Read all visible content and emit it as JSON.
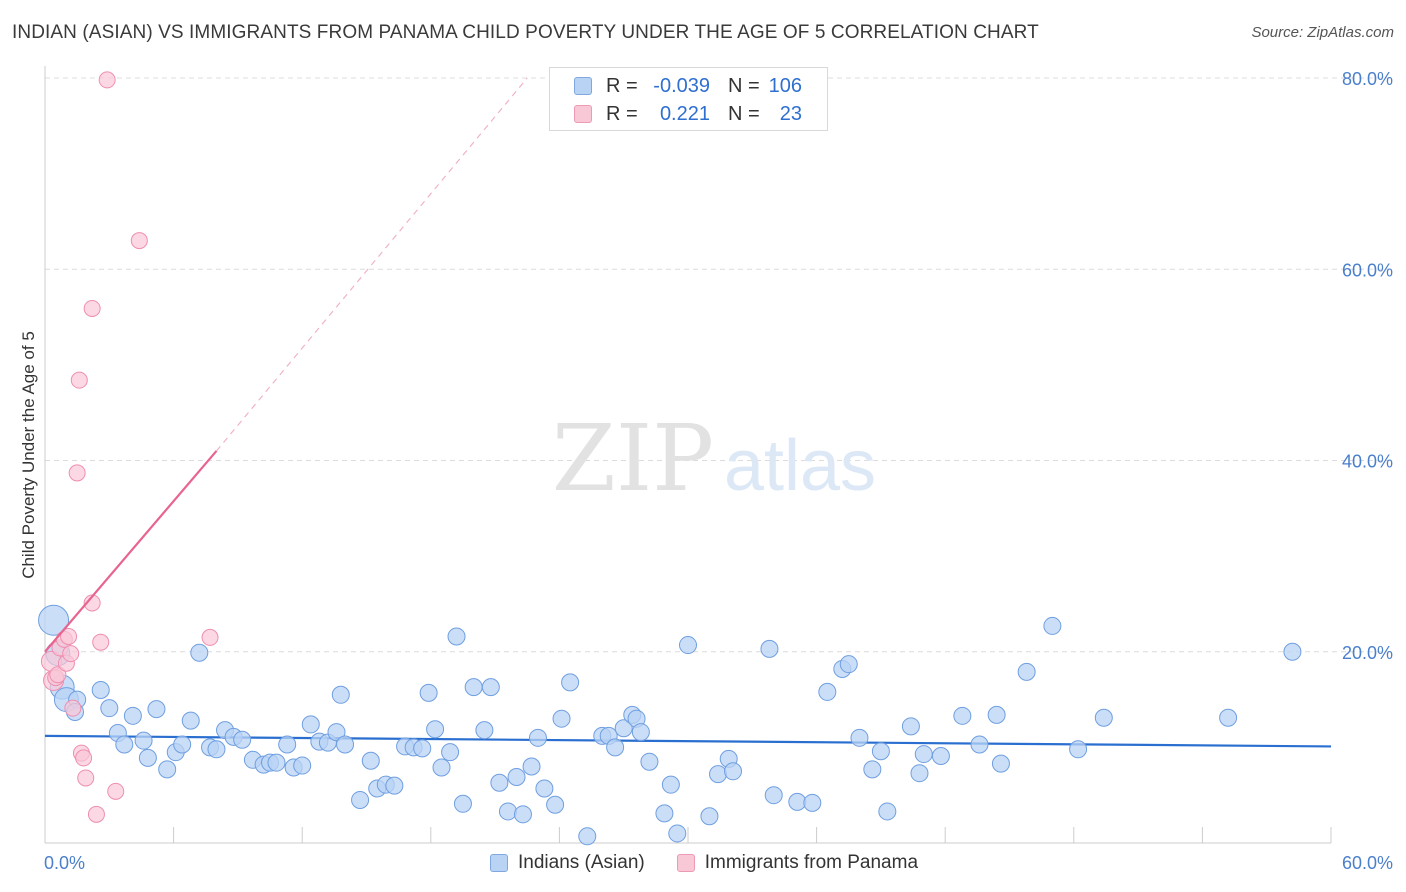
{
  "title": "INDIAN (ASIAN) VS IMMIGRANTS FROM PANAMA CHILD POVERTY UNDER THE AGE OF 5 CORRELATION CHART",
  "source": "Source: ZipAtlas.com",
  "watermark": {
    "zip": "ZIP",
    "atlas": "atlas"
  },
  "legend": {
    "rows": [
      {
        "r_label": "R =",
        "r_value": "-0.039",
        "n_label": "N =",
        "n_value": "106"
      },
      {
        "r_label": "R =",
        "r_value": "0.221",
        "n_label": "N =",
        "n_value": "23"
      }
    ]
  },
  "colors": {
    "blue_fill": "#b9d3f5",
    "blue_stroke": "#6f9fe0",
    "blue_line": "#2a6fd0",
    "pink_fill": "#f9c8d7",
    "pink_stroke": "#ee8fb0",
    "pink_line": "#e8648f",
    "grid": "#dcdcdc",
    "axis": "#cccccc"
  },
  "chart_data": {
    "type": "scatter",
    "title": "INDIAN (ASIAN) VS IMMIGRANTS FROM PANAMA CHILD POVERTY UNDER THE AGE OF 5 CORRELATION CHART",
    "xlabel": "",
    "ylabel": "Child Poverty Under the Age of 5",
    "xlim": [
      0,
      60
    ],
    "ylim": [
      0,
      80
    ],
    "x_tick_labels": [
      "0.0%",
      "60.0%"
    ],
    "y_ticks": [
      20,
      40,
      60,
      80
    ],
    "y_tick_labels": [
      "20.0%",
      "40.0%",
      "60.0%",
      "80.0%"
    ],
    "grid": true,
    "series": [
      {
        "name": "Indians (Asian)",
        "trend": {
          "x0": 0,
          "y0": 11.2,
          "x1": 60,
          "y1": 10.1
        },
        "points": [
          [
            0.4,
            23.3
          ],
          [
            0.6,
            19.8
          ],
          [
            0.8,
            16.3
          ],
          [
            1.0,
            15.0
          ],
          [
            1.5,
            15.0
          ],
          [
            1.4,
            13.7
          ],
          [
            2.6,
            16.0
          ],
          [
            3.0,
            14.1
          ],
          [
            3.4,
            11.5
          ],
          [
            3.7,
            10.3
          ],
          [
            4.1,
            13.3
          ],
          [
            4.6,
            10.7
          ],
          [
            4.8,
            8.9
          ],
          [
            5.2,
            14.0
          ],
          [
            5.7,
            7.7
          ],
          [
            6.1,
            9.5
          ],
          [
            6.4,
            10.3
          ],
          [
            6.8,
            12.8
          ],
          [
            7.2,
            19.9
          ],
          [
            7.7,
            10.0
          ],
          [
            8.0,
            9.8
          ],
          [
            8.4,
            11.8
          ],
          [
            8.8,
            11.1
          ],
          [
            9.2,
            10.8
          ],
          [
            9.7,
            8.7
          ],
          [
            10.2,
            8.2
          ],
          [
            10.5,
            8.4
          ],
          [
            10.8,
            8.4
          ],
          [
            11.3,
            10.3
          ],
          [
            11.6,
            7.9
          ],
          [
            12.0,
            8.1
          ],
          [
            12.4,
            12.4
          ],
          [
            12.8,
            10.6
          ],
          [
            13.2,
            10.5
          ],
          [
            13.6,
            11.6
          ],
          [
            14.0,
            10.3
          ],
          [
            13.8,
            15.5
          ],
          [
            14.7,
            4.5
          ],
          [
            15.2,
            8.6
          ],
          [
            15.5,
            5.7
          ],
          [
            15.9,
            6.1
          ],
          [
            16.3,
            6.0
          ],
          [
            16.8,
            10.1
          ],
          [
            17.2,
            10.0
          ],
          [
            17.6,
            9.9
          ],
          [
            17.9,
            15.7
          ],
          [
            18.2,
            11.9
          ],
          [
            18.5,
            7.9
          ],
          [
            18.9,
            9.5
          ],
          [
            19.2,
            21.6
          ],
          [
            19.5,
            4.1
          ],
          [
            20.0,
            16.3
          ],
          [
            20.5,
            11.8
          ],
          [
            20.8,
            16.3
          ],
          [
            21.2,
            6.3
          ],
          [
            21.6,
            3.3
          ],
          [
            22.0,
            6.9
          ],
          [
            22.3,
            3.0
          ],
          [
            22.7,
            8.0
          ],
          [
            23.0,
            11.0
          ],
          [
            23.3,
            5.7
          ],
          [
            23.8,
            4.0
          ],
          [
            24.1,
            13.0
          ],
          [
            24.5,
            16.8
          ],
          [
            25.3,
            0.7
          ],
          [
            26.0,
            11.2
          ],
          [
            26.3,
            11.2
          ],
          [
            26.6,
            10.0
          ],
          [
            27.0,
            12.0
          ],
          [
            27.4,
            13.4
          ],
          [
            27.6,
            13.0
          ],
          [
            27.8,
            11.6
          ],
          [
            28.2,
            8.5
          ],
          [
            28.9,
            3.1
          ],
          [
            29.2,
            6.1
          ],
          [
            29.5,
            1.0
          ],
          [
            30.0,
            20.7
          ],
          [
            31.0,
            2.8
          ],
          [
            31.4,
            7.2
          ],
          [
            31.9,
            8.8
          ],
          [
            32.1,
            7.5
          ],
          [
            33.8,
            20.3
          ],
          [
            34.0,
            5.0
          ],
          [
            35.1,
            4.3
          ],
          [
            35.8,
            4.2
          ],
          [
            36.5,
            15.8
          ],
          [
            37.2,
            18.2
          ],
          [
            37.5,
            18.7
          ],
          [
            38.0,
            11.0
          ],
          [
            38.6,
            7.7
          ],
          [
            39.0,
            9.6
          ],
          [
            39.3,
            3.3
          ],
          [
            40.4,
            12.2
          ],
          [
            40.8,
            7.3
          ],
          [
            41.0,
            9.3
          ],
          [
            41.8,
            9.1
          ],
          [
            42.8,
            13.3
          ],
          [
            43.6,
            10.3
          ],
          [
            44.4,
            13.4
          ],
          [
            44.6,
            8.3
          ],
          [
            45.8,
            17.9
          ],
          [
            47.0,
            22.7
          ],
          [
            48.2,
            9.8
          ],
          [
            49.4,
            13.1
          ],
          [
            55.2,
            13.1
          ],
          [
            58.2,
            20.0
          ]
        ]
      },
      {
        "name": "Immigrants from Panama",
        "trend": {
          "x0": 0,
          "y0": 20.0,
          "x1": 8.0,
          "y1": 41.0,
          "dash_to": {
            "x": 22.5,
            "y": 80.0
          }
        },
        "points": [
          [
            0.3,
            19.0
          ],
          [
            0.4,
            17.0
          ],
          [
            0.5,
            17.3
          ],
          [
            0.7,
            20.4
          ],
          [
            0.9,
            21.3
          ],
          [
            1.1,
            21.6
          ],
          [
            0.6,
            17.6
          ],
          [
            1.0,
            18.8
          ],
          [
            1.2,
            19.8
          ],
          [
            1.3,
            14.1
          ],
          [
            1.5,
            38.7
          ],
          [
            1.6,
            48.4
          ],
          [
            1.7,
            9.4
          ],
          [
            1.8,
            8.9
          ],
          [
            1.9,
            6.8
          ],
          [
            2.2,
            25.1
          ],
          [
            2.2,
            55.9
          ],
          [
            2.4,
            3.0
          ],
          [
            2.6,
            21.0
          ],
          [
            3.3,
            5.4
          ],
          [
            4.4,
            63.0
          ],
          [
            2.9,
            79.8
          ],
          [
            7.7,
            21.5
          ]
        ]
      }
    ]
  }
}
